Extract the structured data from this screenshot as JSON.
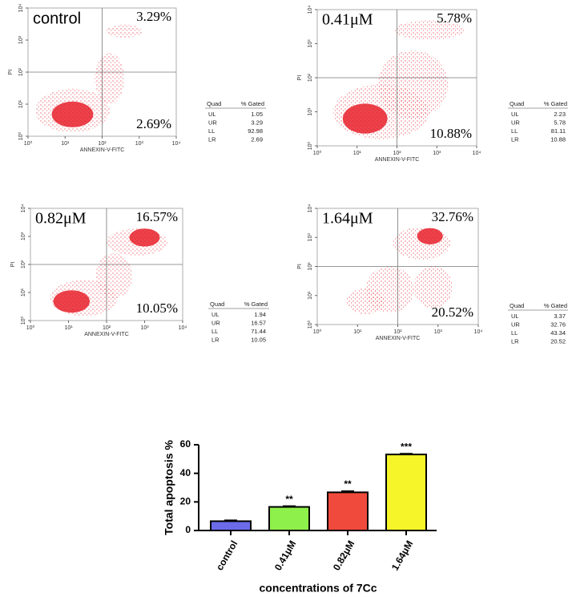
{
  "chart_data": [
    {
      "type": "flow",
      "title": "control",
      "xlabel": "ANNEXIN-V-FITC",
      "ylabel": "PI",
      "log": true,
      "xlim": [
        1,
        10000
      ],
      "ylim": [
        1,
        10000
      ],
      "xticks": [
        {
          "value": 1,
          "label": "10⁰"
        },
        {
          "value": 10,
          "label": "10¹"
        },
        {
          "value": 100,
          "label": "10²"
        },
        {
          "value": 1000,
          "label": "10³"
        },
        {
          "value": 10000,
          "label": "10⁴"
        }
      ],
      "yticks": [
        {
          "value": 1,
          "label": "10⁰"
        },
        {
          "value": 10,
          "label": "10¹"
        },
        {
          "value": 100,
          "label": "10²"
        },
        {
          "value": 1000,
          "label": "10³"
        },
        {
          "value": 10000,
          "label": "10⁴"
        }
      ],
      "gate": [
        100,
        100
      ],
      "color": "#e8202a",
      "corner_labels": [
        "3.29%",
        "2.69%"
      ],
      "table": {
        "header": [
          "Quad",
          "% Gated"
        ],
        "rows": [
          [
            "UL",
            1.05
          ],
          [
            "UR",
            3.29
          ],
          [
            "LL",
            92.98
          ],
          [
            "LR",
            2.69
          ]
        ]
      }
    },
    {
      "type": "flow",
      "title": "0.41μM",
      "xlabel": "ANNEXIN-V-FITC",
      "ylabel": "PI",
      "log": true,
      "xlim": [
        1,
        10000
      ],
      "ylim": [
        1,
        10000
      ],
      "xticks": [
        {
          "value": 1,
          "label": "10⁰"
        },
        {
          "value": 10,
          "label": "10¹"
        },
        {
          "value": 100,
          "label": "10²"
        },
        {
          "value": 1000,
          "label": "10³"
        },
        {
          "value": 10000,
          "label": "10⁴"
        }
      ],
      "yticks": [
        {
          "value": 1,
          "label": "10⁰"
        },
        {
          "value": 10,
          "label": "10¹"
        },
        {
          "value": 100,
          "label": "10²"
        },
        {
          "value": 1000,
          "label": "10³"
        },
        {
          "value": 10000,
          "label": "10⁴"
        }
      ],
      "gate": [
        100,
        100
      ],
      "color": "#e8202a",
      "corner_labels": [
        "5.78%",
        "10.88%"
      ],
      "table": {
        "header": [
          "Quad",
          "% Gated"
        ],
        "rows": [
          [
            "UL",
            2.23
          ],
          [
            "UR",
            5.78
          ],
          [
            "LL",
            81.11
          ],
          [
            "LR",
            10.88
          ]
        ]
      }
    },
    {
      "type": "flow",
      "title": "0.82μM",
      "xlabel": "ANNEXIN-V-FITC",
      "ylabel": "PI",
      "log": true,
      "xlim": [
        1,
        10000
      ],
      "ylim": [
        1,
        10000
      ],
      "xticks": [
        {
          "value": 1,
          "label": "10⁰"
        },
        {
          "value": 10,
          "label": "10¹"
        },
        {
          "value": 100,
          "label": "10²"
        },
        {
          "value": 1000,
          "label": "10³"
        },
        {
          "value": 10000,
          "label": "10⁴"
        }
      ],
      "yticks": [
        {
          "value": 1,
          "label": "10⁰"
        },
        {
          "value": 10,
          "label": "10¹"
        },
        {
          "value": 100,
          "label": "10²"
        },
        {
          "value": 1000,
          "label": "10³"
        },
        {
          "value": 10000,
          "label": "10⁴"
        }
      ],
      "gate": [
        100,
        100
      ],
      "color": "#e8202a",
      "corner_labels": [
        "16.57%",
        "10.05%"
      ],
      "table": {
        "header": [
          "Quad",
          "% Gated"
        ],
        "rows": [
          [
            "UL",
            1.94
          ],
          [
            "UR",
            16.57
          ],
          [
            "LL",
            71.44
          ],
          [
            "LR",
            10.05
          ]
        ]
      }
    },
    {
      "type": "flow",
      "title": "1.64μM",
      "xlabel": "ANNEXIN-V-FITC",
      "ylabel": "PI",
      "log": true,
      "xlim": [
        1,
        10000
      ],
      "ylim": [
        1,
        10000
      ],
      "xticks": [
        {
          "value": 1,
          "label": "10⁰"
        },
        {
          "value": 10,
          "label": "10¹"
        },
        {
          "value": 100,
          "label": "10²"
        },
        {
          "value": 1000,
          "label": "10³"
        },
        {
          "value": 10000,
          "label": "10⁴"
        }
      ],
      "yticks": [
        {
          "value": 1,
          "label": "10⁰"
        },
        {
          "value": 10,
          "label": "10¹"
        },
        {
          "value": 100,
          "label": "10²"
        },
        {
          "value": 1000,
          "label": "10³"
        },
        {
          "value": 10000,
          "label": "10⁴"
        }
      ],
      "gate": [
        100,
        100
      ],
      "color": "#e8202a",
      "corner_labels": [
        "32.76%",
        "20.52%"
      ],
      "table": {
        "header": [
          "Quad",
          "% Gated"
        ],
        "rows": [
          [
            "UL",
            3.37
          ],
          [
            "UR",
            32.76
          ],
          [
            "LL",
            43.34
          ],
          [
            "LR",
            20.52
          ]
        ]
      }
    },
    {
      "type": "bar",
      "ylabel": "Total apoptosis %",
      "xlabel": "concentrations of 7Cc",
      "categories": [
        "control",
        "0.41μM",
        "0.82μM",
        "1.64μM"
      ],
      "values": [
        6.5,
        16.5,
        26.7,
        53.2
      ],
      "errors": [
        0.6,
        0.5,
        0.8,
        0.5
      ],
      "colors": [
        "#6b6bea",
        "#8ef04a",
        "#f04a3c",
        "#f5f52a"
      ],
      "significance": [
        null,
        "**",
        "**",
        "***"
      ],
      "ylim": [
        0,
        60
      ],
      "yticks": [
        0,
        20,
        40,
        60
      ]
    }
  ]
}
